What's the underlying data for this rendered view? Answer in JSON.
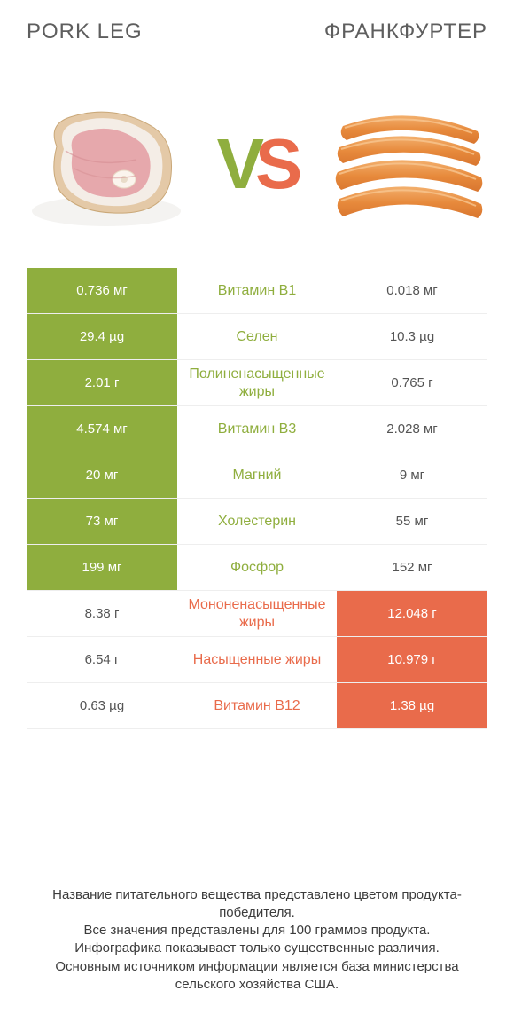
{
  "colors": {
    "left_winner_bg": "#8fae3e",
    "right_winner_bg": "#e96b4b",
    "winner_text": "#ffffff",
    "vs_v": "#8fae3e",
    "vs_s": "#e96b4b",
    "mid_text_left_win": "#8fae3e",
    "mid_text_right_win": "#e96b4b",
    "pork_meat": "#e6a8ac",
    "pork_fat": "#f4ede6",
    "pork_bone": "#fbf4ed",
    "pork_skin": "#e4c9a7",
    "sausage": "#e78a3c",
    "sausage_hl": "#f3b06e",
    "plate": "#f4f3f1"
  },
  "titles": {
    "left": "Pork leg",
    "right": "ФРАНКФУРТЕР"
  },
  "vs": {
    "v": "V",
    "s": "S"
  },
  "rows": [
    {
      "left": "0.736 мг",
      "label": "Витамин B1",
      "right": "0.018 мг",
      "winner": "left"
    },
    {
      "left": "29.4 µg",
      "label": "Селен",
      "right": "10.3 µg",
      "winner": "left"
    },
    {
      "left": "2.01 г",
      "label": "Полиненасыщенные жиры",
      "right": "0.765 г",
      "winner": "left"
    },
    {
      "left": "4.574 мг",
      "label": "Витамин B3",
      "right": "2.028 мг",
      "winner": "left"
    },
    {
      "left": "20 мг",
      "label": "Магний",
      "right": "9 мг",
      "winner": "left"
    },
    {
      "left": "73 мг",
      "label": "Холестерин",
      "right": "55 мг",
      "winner": "left"
    },
    {
      "left": "199 мг",
      "label": "Фосфор",
      "right": "152 мг",
      "winner": "left"
    },
    {
      "left": "8.38 г",
      "label": "Мононенасыщенные жиры",
      "right": "12.048 г",
      "winner": "right"
    },
    {
      "left": "6.54 г",
      "label": "Насыщенные жиры",
      "right": "10.979 г",
      "winner": "right"
    },
    {
      "left": "0.63 µg",
      "label": "Витамин B12",
      "right": "1.38 µg",
      "winner": "right"
    }
  ],
  "footer": {
    "l1": "Название питательного вещества представлено цветом продукта-победителя.",
    "l2": "Все значения представлены для 100 граммов продукта.",
    "l3": "Инфографика показывает только существенные различия.",
    "l4": "Основным источником информации является база министерства сельского хозяйства США."
  }
}
